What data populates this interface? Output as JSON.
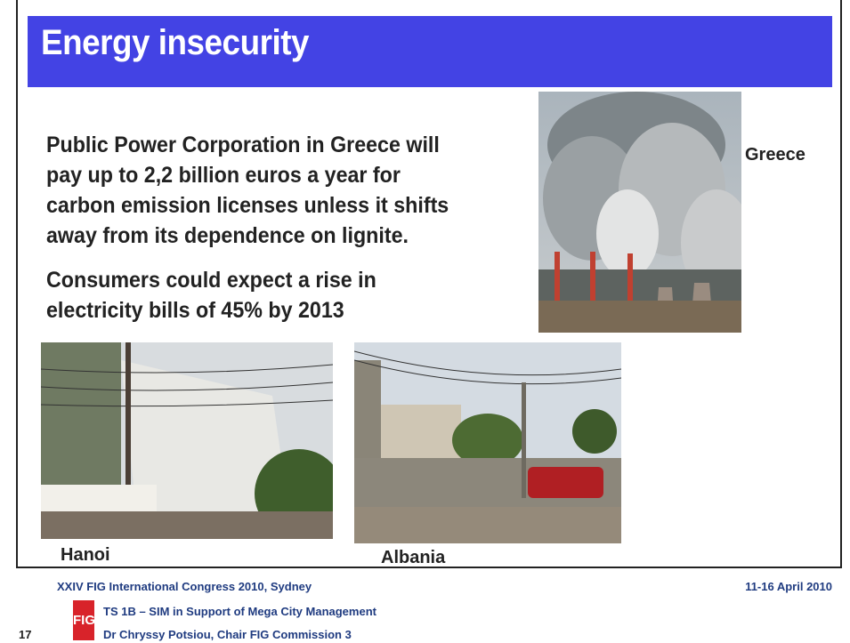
{
  "header": {
    "title": "Energy insecurity"
  },
  "body": {
    "paragraphs": [
      {
        "lines": [
          "Public Power Corporation in Greece will",
          "pay up to 2,2 billion euros a year for",
          "carbon emission licenses unless it shifts",
          "away from its dependence on lignite."
        ]
      },
      {
        "lines": [
          "Consumers could expect a rise in",
          "electricity bills of 45% by 2013"
        ]
      }
    ]
  },
  "images": [
    {
      "caption": "Greece"
    },
    {
      "caption": "Hanoi"
    },
    {
      "caption": "Albania"
    }
  ],
  "footer": {
    "event": "XXIV FIG International Congress 2010, Sydney",
    "date": "11-16 April 2010",
    "logo": "FIG",
    "session": "TS 1B – SIM in Support of Mega City Management",
    "author": "Dr Chryssy Potsiou, Chair FIG Commission 3",
    "page_number": "17"
  }
}
